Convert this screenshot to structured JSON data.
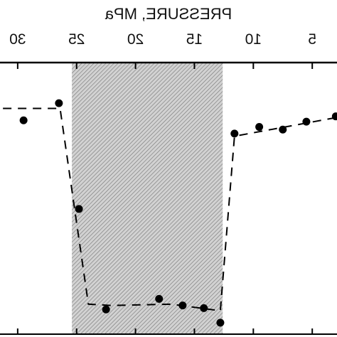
{
  "chart_data": {
    "type": "scatter",
    "xlabel": "PRESSURE, MPa",
    "x_axis_position": "top",
    "mirrored_image": true,
    "xlim": [
      2.9,
      31.5
    ],
    "ylim": [
      0,
      1
    ],
    "x_ticks": [
      5,
      10,
      15,
      20,
      25,
      30
    ],
    "x_tick_labels": [
      "5",
      "10",
      "15",
      "20",
      "25",
      "30"
    ],
    "y_tick_labels": [],
    "shaded_region": {
      "x_start": 12.6,
      "x_end": 25.4,
      "pattern": "diagonal hatch"
    },
    "series": [
      {
        "style": "markers",
        "points": [
          {
            "x": 3.0,
            "y": 0.81
          },
          {
            "x": 5.5,
            "y": 0.79
          },
          {
            "x": 7.5,
            "y": 0.76
          },
          {
            "x": 9.5,
            "y": 0.77
          },
          {
            "x": 11.6,
            "y": 0.745
          },
          {
            "x": 12.8,
            "y": 0.03
          },
          {
            "x": 14.2,
            "y": 0.085
          },
          {
            "x": 16.0,
            "y": 0.095
          },
          {
            "x": 18.0,
            "y": 0.12
          },
          {
            "x": 22.5,
            "y": 0.08
          },
          {
            "x": 24.8,
            "y": 0.46
          },
          {
            "x": 26.5,
            "y": 0.86
          },
          {
            "x": 29.5,
            "y": 0.795
          }
        ]
      },
      {
        "style": "dashed-line",
        "points": [
          {
            "x": 3.0,
            "y": 0.805
          },
          {
            "x": 11.6,
            "y": 0.735
          },
          {
            "x": 12.8,
            "y": 0.075
          },
          {
            "x": 17.0,
            "y": 0.1
          },
          {
            "x": 22.0,
            "y": 0.095
          },
          {
            "x": 24.0,
            "y": 0.1
          },
          {
            "x": 26.4,
            "y": 0.84
          },
          {
            "x": 31.5,
            "y": 0.84
          }
        ]
      }
    ],
    "grid": false,
    "legend": "none"
  }
}
